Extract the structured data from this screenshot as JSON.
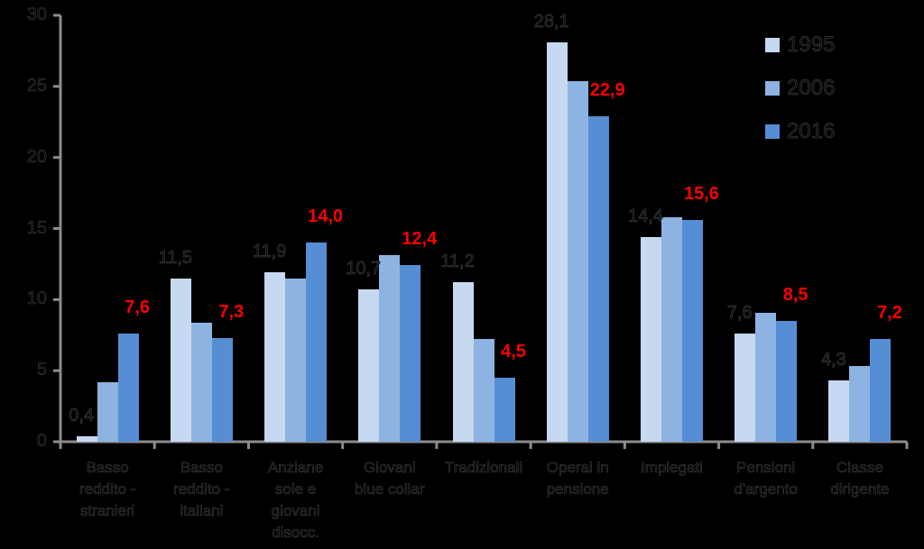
{
  "chart_data": {
    "type": "bar",
    "title": "",
    "xlabel": "",
    "ylabel": "",
    "ylim": [
      0,
      30
    ],
    "yticks": [
      "0",
      "5",
      "10",
      "15",
      "20",
      "25",
      "30"
    ],
    "grid": false,
    "legend_position": "top-right",
    "categories": [
      "Basso\nreddito -\nstranieri",
      "Basso\nreddito -\nitaliani",
      "Anziane\nsole e\ngiovani\ndisocc.",
      "Giovani\nblue collar",
      "Tradizionali",
      "Operai in\npensione",
      "Impiegati",
      "Pensioni\nd'argento",
      "Classe\ndirigente"
    ],
    "series": [
      {
        "name": "1995",
        "color": "#c6d9f1",
        "values": [
          0.4,
          11.5,
          11.9,
          10.7,
          11.2,
          28.1,
          14.4,
          7.6,
          4.3
        ]
      },
      {
        "name": "2006",
        "color": "#8db3e2",
        "values": [
          4.2,
          8.4,
          11.5,
          13.1,
          7.2,
          25.4,
          15.8,
          9.1,
          5.3
        ]
      },
      {
        "name": "2016",
        "color": "#558ed5",
        "values": [
          7.6,
          7.3,
          14.0,
          12.4,
          4.5,
          22.9,
          15.6,
          8.5,
          7.2
        ]
      }
    ],
    "data_labels": {
      "1995": [
        "0,4",
        "11,5",
        "11,9",
        "10,7",
        "11,2",
        "28,1",
        "14,4",
        "7,6",
        "4,3"
      ],
      "2016": [
        "7,6",
        "7,3",
        "14,0",
        "12,4",
        "4,5",
        "22,9",
        "15,6",
        "8,5",
        "7,2"
      ]
    },
    "label_colors": {
      "1995": "#0a0a0a",
      "2016": "#ff0000"
    }
  },
  "colors": {
    "background": "#000000",
    "axis": "#8c8c8c"
  }
}
